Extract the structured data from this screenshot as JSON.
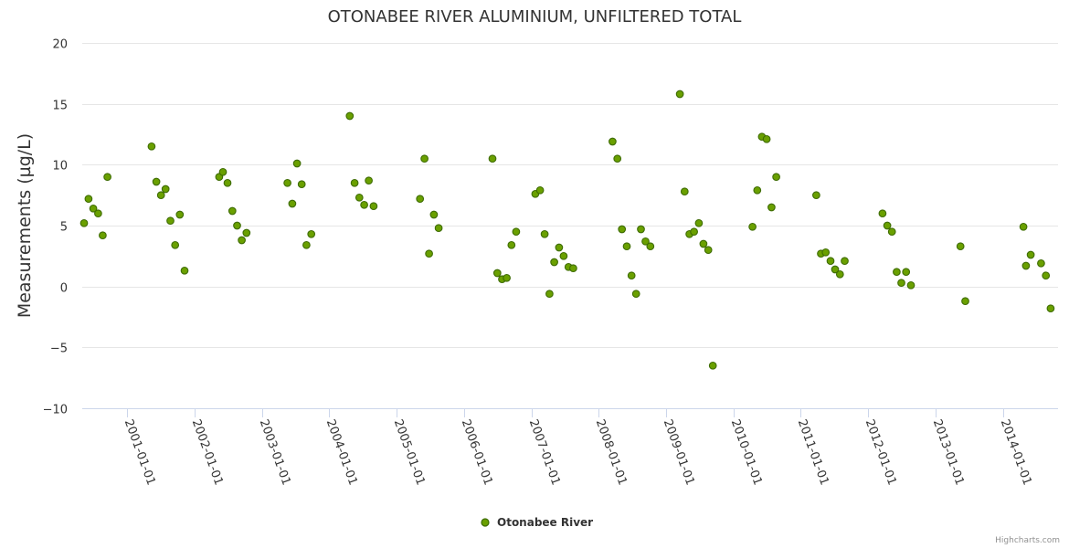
{
  "chart_data": {
    "type": "scatter",
    "title": "OTONABEE RIVER ALUMINIUM, UNFILTERED TOTAL",
    "xlabel": "",
    "ylabel": "Measurements (µg/L)",
    "ylim": [
      -10,
      20
    ],
    "yticks": [
      -10,
      -5,
      0,
      5,
      10,
      15,
      20
    ],
    "xlim": [
      "2000-05-01",
      "2014-10-27"
    ],
    "xticks": [
      "2001-01-01",
      "2002-01-01",
      "2003-01-01",
      "2004-01-01",
      "2005-01-01",
      "2006-01-01",
      "2007-01-01",
      "2008-01-01",
      "2009-01-01",
      "2010-01-01",
      "2011-01-01",
      "2012-01-01",
      "2013-01-01",
      "2014-01-01"
    ],
    "grid": "horizontal",
    "legend_position": "bottom-center",
    "colors": {
      "marker_fill": "#6aa000",
      "marker_stroke": "#3d6b00",
      "grid": "#e6e6e6",
      "axis": "#ccd6eb"
    },
    "series": [
      {
        "name": "Otonabee River",
        "points": [
          [
            "2000-05-11",
            5.2
          ],
          [
            "2000-06-04",
            7.2
          ],
          [
            "2000-06-30",
            6.4
          ],
          [
            "2000-07-26",
            6.0
          ],
          [
            "2000-08-20",
            4.2
          ],
          [
            "2000-09-15",
            9.0
          ],
          [
            "2001-05-12",
            11.5
          ],
          [
            "2001-06-07",
            8.6
          ],
          [
            "2001-07-02",
            7.5
          ],
          [
            "2001-07-27",
            8.0
          ],
          [
            "2001-08-22",
            5.4
          ],
          [
            "2001-09-17",
            3.4
          ],
          [
            "2001-10-12",
            5.9
          ],
          [
            "2001-11-07",
            1.3
          ],
          [
            "2002-05-14",
            9.0
          ],
          [
            "2002-06-03",
            9.4
          ],
          [
            "2002-06-28",
            8.5
          ],
          [
            "2002-07-24",
            6.2
          ],
          [
            "2002-08-19",
            5.0
          ],
          [
            "2002-09-13",
            3.8
          ],
          [
            "2002-10-09",
            4.4
          ],
          [
            "2003-05-19",
            8.5
          ],
          [
            "2003-06-14",
            6.8
          ],
          [
            "2003-07-10",
            10.1
          ],
          [
            "2003-08-04",
            8.4
          ],
          [
            "2003-08-30",
            3.4
          ],
          [
            "2003-09-25",
            4.3
          ],
          [
            "2004-04-21",
            14.0
          ],
          [
            "2004-05-17",
            8.5
          ],
          [
            "2004-06-12",
            7.3
          ],
          [
            "2004-07-08",
            6.7
          ],
          [
            "2004-08-02",
            8.7
          ],
          [
            "2004-08-28",
            6.6
          ],
          [
            "2005-05-07",
            7.2
          ],
          [
            "2005-05-31",
            10.5
          ],
          [
            "2005-06-25",
            2.7
          ],
          [
            "2005-07-21",
            5.9
          ],
          [
            "2005-08-16",
            4.8
          ],
          [
            "2006-06-04",
            10.5
          ],
          [
            "2006-06-30",
            1.1
          ],
          [
            "2006-07-26",
            0.6
          ],
          [
            "2006-08-20",
            0.7
          ],
          [
            "2006-09-15",
            3.4
          ],
          [
            "2006-10-10",
            4.5
          ],
          [
            "2007-01-22",
            7.6
          ],
          [
            "2007-02-17",
            7.9
          ],
          [
            "2007-03-14",
            4.3
          ],
          [
            "2007-04-09",
            -0.6
          ],
          [
            "2007-05-05",
            2.0
          ],
          [
            "2007-05-31",
            3.2
          ],
          [
            "2007-06-25",
            2.5
          ],
          [
            "2007-07-21",
            1.6
          ],
          [
            "2007-08-16",
            1.5
          ],
          [
            "2008-03-16",
            11.9
          ],
          [
            "2008-04-11",
            10.5
          ],
          [
            "2008-05-06",
            4.7
          ],
          [
            "2008-06-01",
            3.3
          ],
          [
            "2008-06-27",
            0.9
          ],
          [
            "2008-07-22",
            -0.6
          ],
          [
            "2008-08-17",
            4.7
          ],
          [
            "2008-09-11",
            3.7
          ],
          [
            "2008-10-07",
            3.3
          ],
          [
            "2009-03-16",
            15.8
          ],
          [
            "2009-04-11",
            7.8
          ],
          [
            "2009-05-07",
            4.3
          ],
          [
            "2009-06-01",
            4.5
          ],
          [
            "2009-06-27",
            5.2
          ],
          [
            "2009-07-22",
            3.5
          ],
          [
            "2009-08-17",
            3.0
          ],
          [
            "2009-09-11",
            -6.5
          ],
          [
            "2010-04-14",
            4.9
          ],
          [
            "2010-05-10",
            7.9
          ],
          [
            "2010-06-04",
            12.3
          ],
          [
            "2010-06-30",
            12.1
          ],
          [
            "2010-07-26",
            6.5
          ],
          [
            "2010-08-21",
            9.0
          ],
          [
            "2011-03-26",
            7.5
          ],
          [
            "2011-04-20",
            2.7
          ],
          [
            "2011-05-16",
            2.8
          ],
          [
            "2011-06-11",
            2.1
          ],
          [
            "2011-07-06",
            1.4
          ],
          [
            "2011-08-01",
            1.0
          ],
          [
            "2011-08-27",
            2.1
          ],
          [
            "2012-03-19",
            6.0
          ],
          [
            "2012-04-14",
            5.0
          ],
          [
            "2012-05-09",
            4.5
          ],
          [
            "2012-06-04",
            1.2
          ],
          [
            "2012-06-29",
            0.3
          ],
          [
            "2012-07-25",
            1.2
          ],
          [
            "2012-08-20",
            0.1
          ],
          [
            "2013-05-16",
            3.3
          ],
          [
            "2013-06-11",
            -1.2
          ],
          [
            "2014-04-22",
            4.9
          ],
          [
            "2014-05-06",
            1.7
          ],
          [
            "2014-06-01",
            2.6
          ],
          [
            "2014-07-27",
            1.9
          ],
          [
            "2014-08-22",
            0.9
          ],
          [
            "2014-09-17",
            -1.8
          ]
        ]
      }
    ],
    "credit": "Highcharts.com"
  }
}
